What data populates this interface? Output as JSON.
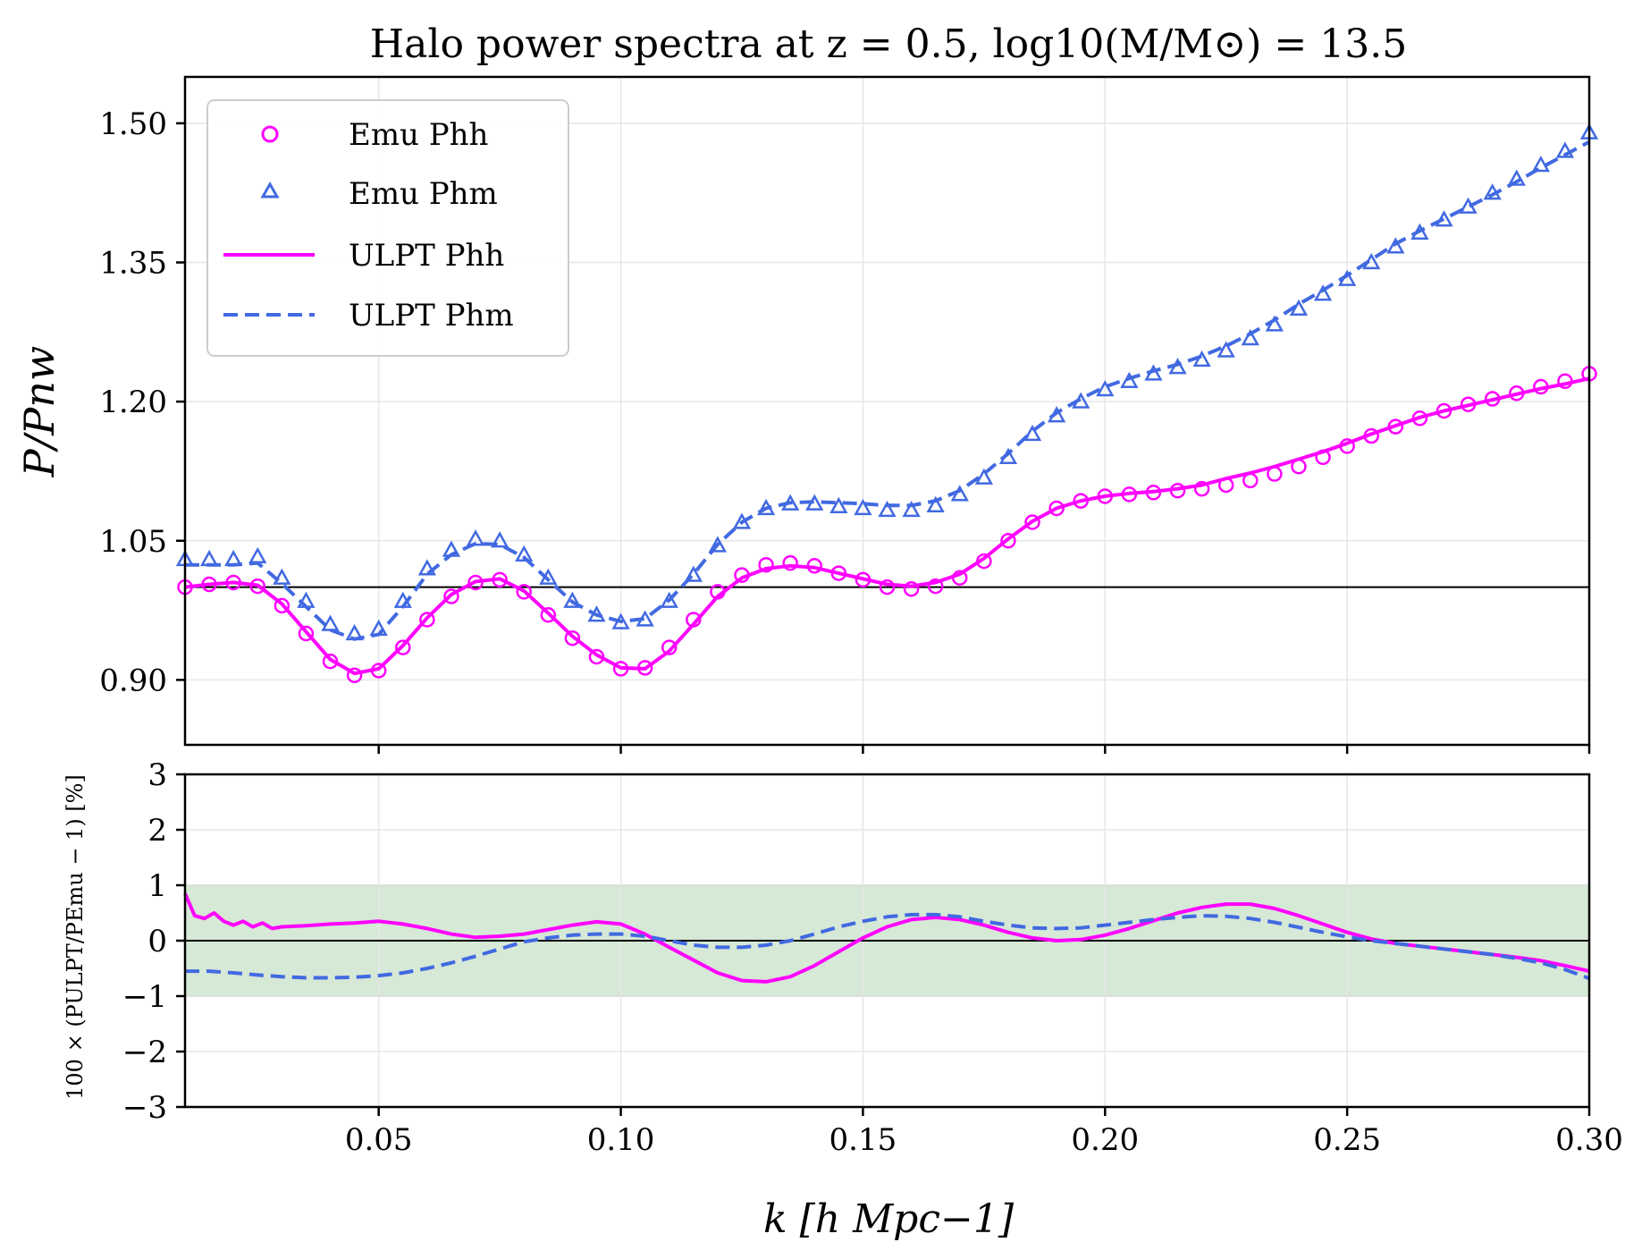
{
  "title": "Halo power spectra at z = 0.5, log10(M/M⊙) = 13.5",
  "legend": {
    "emu_hh": "Emu Phh",
    "emu_hm": "Emu Phm",
    "ulpt_hh": "ULPT Phh",
    "ulpt_hm": "ULPT Phm"
  },
  "colors": {
    "hh": "#ff00ff",
    "hm": "#4169e1",
    "band": "#d6e8d6",
    "band_edge": "#8fb88f"
  },
  "chart_data": [
    {
      "type": "scatter",
      "panel": "top",
      "ylabel": "P/Pnw",
      "xlim": [
        0.01,
        0.3
      ],
      "ylim": [
        0.83,
        1.55
      ],
      "yticks": [
        "0.90",
        "1.05",
        "1.20",
        "1.35",
        "1.50"
      ],
      "reference_line": 1.0,
      "grid": true,
      "legend_position": "upper-left",
      "series": [
        {
          "name": "Emu Phh",
          "marker": "circle",
          "x": [
            0.01,
            0.015,
            0.02,
            0.025,
            0.03,
            0.035,
            0.04,
            0.045,
            0.05,
            0.055,
            0.06,
            0.065,
            0.07,
            0.075,
            0.08,
            0.085,
            0.09,
            0.095,
            0.1,
            0.105,
            0.11,
            0.115,
            0.12,
            0.125,
            0.13,
            0.135,
            0.14,
            0.145,
            0.15,
            0.155,
            0.16,
            0.165,
            0.17,
            0.175,
            0.18,
            0.185,
            0.19,
            0.195,
            0.2,
            0.205,
            0.21,
            0.215,
            0.22,
            0.225,
            0.23,
            0.235,
            0.24,
            0.245,
            0.25,
            0.255,
            0.26,
            0.265,
            0.27,
            0.275,
            0.28,
            0.285,
            0.29,
            0.295,
            0.3
          ],
          "y": [
            1.0,
            1.003,
            1.005,
            1.001,
            0.98,
            0.95,
            0.92,
            0.905,
            0.91,
            0.935,
            0.965,
            0.99,
            1.005,
            1.008,
            0.995,
            0.97,
            0.945,
            0.925,
            0.912,
            0.913,
            0.935,
            0.965,
            0.995,
            1.013,
            1.024,
            1.026,
            1.023,
            1.015,
            1.008,
            1.0,
            0.998,
            1.001,
            1.01,
            1.028,
            1.05,
            1.07,
            1.085,
            1.093,
            1.098,
            1.1,
            1.102,
            1.104,
            1.106,
            1.11,
            1.115,
            1.122,
            1.13,
            1.14,
            1.152,
            1.163,
            1.173,
            1.182,
            1.19,
            1.197,
            1.203,
            1.209,
            1.216,
            1.222,
            1.23
          ]
        },
        {
          "name": "Emu Phm",
          "marker": "triangle",
          "x": [
            0.01,
            0.015,
            0.02,
            0.025,
            0.03,
            0.035,
            0.04,
            0.045,
            0.05,
            0.055,
            0.06,
            0.065,
            0.07,
            0.075,
            0.08,
            0.085,
            0.09,
            0.095,
            0.1,
            0.105,
            0.11,
            0.115,
            0.12,
            0.125,
            0.13,
            0.135,
            0.14,
            0.145,
            0.15,
            0.155,
            0.16,
            0.165,
            0.17,
            0.175,
            0.18,
            0.185,
            0.19,
            0.195,
            0.2,
            0.205,
            0.21,
            0.215,
            0.22,
            0.225,
            0.23,
            0.235,
            0.24,
            0.245,
            0.25,
            0.255,
            0.26,
            0.265,
            0.27,
            0.275,
            0.28,
            0.285,
            0.29,
            0.295,
            0.3
          ],
          "y": [
            1.03,
            1.03,
            1.03,
            1.033,
            1.01,
            0.985,
            0.96,
            0.95,
            0.955,
            0.985,
            1.02,
            1.04,
            1.052,
            1.05,
            1.035,
            1.01,
            0.985,
            0.97,
            0.962,
            0.965,
            0.985,
            1.013,
            1.045,
            1.07,
            1.085,
            1.09,
            1.09,
            1.087,
            1.085,
            1.083,
            1.083,
            1.088,
            1.1,
            1.118,
            1.14,
            1.165,
            1.185,
            1.2,
            1.213,
            1.222,
            1.23,
            1.237,
            1.245,
            1.255,
            1.268,
            1.283,
            1.3,
            1.316,
            1.332,
            1.35,
            1.367,
            1.382,
            1.396,
            1.41,
            1.425,
            1.44,
            1.455,
            1.47,
            1.49
          ]
        },
        {
          "name": "ULPT Phh",
          "style": "solid",
          "x": [
            0.01,
            0.015,
            0.02,
            0.025,
            0.03,
            0.035,
            0.04,
            0.045,
            0.05,
            0.055,
            0.06,
            0.065,
            0.07,
            0.075,
            0.08,
            0.085,
            0.09,
            0.095,
            0.1,
            0.105,
            0.11,
            0.115,
            0.12,
            0.125,
            0.13,
            0.135,
            0.14,
            0.145,
            0.15,
            0.155,
            0.16,
            0.165,
            0.17,
            0.175,
            0.18,
            0.185,
            0.19,
            0.195,
            0.2,
            0.205,
            0.21,
            0.215,
            0.22,
            0.225,
            0.23,
            0.235,
            0.24,
            0.245,
            0.25,
            0.255,
            0.26,
            0.265,
            0.27,
            0.275,
            0.28,
            0.285,
            0.29,
            0.295,
            0.3
          ],
          "y": [
            1.0,
            1.003,
            1.005,
            1.002,
            0.982,
            0.952,
            0.922,
            0.907,
            0.912,
            0.937,
            0.967,
            0.992,
            1.006,
            1.009,
            0.996,
            0.972,
            0.947,
            0.927,
            0.913,
            0.912,
            0.931,
            0.96,
            0.99,
            1.01,
            1.02,
            1.023,
            1.021,
            1.015,
            1.009,
            1.003,
            1.001,
            1.005,
            1.014,
            1.031,
            1.052,
            1.071,
            1.085,
            1.093,
            1.098,
            1.101,
            1.103,
            1.106,
            1.11,
            1.117,
            1.123,
            1.13,
            1.138,
            1.146,
            1.155,
            1.165,
            1.174,
            1.183,
            1.19,
            1.196,
            1.202,
            1.208,
            1.214,
            1.219,
            1.225
          ]
        },
        {
          "name": "ULPT Phm",
          "style": "dashed",
          "x": [
            0.01,
            0.015,
            0.02,
            0.025,
            0.03,
            0.035,
            0.04,
            0.045,
            0.05,
            0.055,
            0.06,
            0.065,
            0.07,
            0.075,
            0.08,
            0.085,
            0.09,
            0.095,
            0.1,
            0.105,
            0.11,
            0.115,
            0.12,
            0.125,
            0.13,
            0.135,
            0.14,
            0.145,
            0.15,
            0.155,
            0.16,
            0.165,
            0.17,
            0.175,
            0.18,
            0.185,
            0.19,
            0.195,
            0.2,
            0.205,
            0.21,
            0.215,
            0.22,
            0.225,
            0.23,
            0.235,
            0.24,
            0.245,
            0.25,
            0.255,
            0.26,
            0.265,
            0.27,
            0.275,
            0.28,
            0.285,
            0.29,
            0.295,
            0.3
          ],
          "y": [
            1.024,
            1.024,
            1.024,
            1.026,
            1.004,
            0.979,
            0.954,
            0.944,
            0.949,
            0.979,
            1.014,
            1.035,
            1.047,
            1.046,
            1.032,
            1.008,
            0.984,
            0.97,
            0.963,
            0.966,
            0.986,
            1.014,
            1.046,
            1.07,
            1.085,
            1.091,
            1.092,
            1.091,
            1.09,
            1.088,
            1.088,
            1.093,
            1.104,
            1.122,
            1.144,
            1.168,
            1.188,
            1.203,
            1.216,
            1.225,
            1.233,
            1.24,
            1.249,
            1.26,
            1.273,
            1.288,
            1.305,
            1.32,
            1.336,
            1.353,
            1.37,
            1.384,
            1.397,
            1.41,
            1.423,
            1.437,
            1.452,
            1.466,
            1.48
          ]
        }
      ]
    },
    {
      "type": "line",
      "panel": "bottom",
      "xlabel": "k [h Mpc−1]",
      "ylabel": "100 × (PULPT/PEmu − 1) [%]",
      "xlim": [
        0.01,
        0.3
      ],
      "ylim": [
        -3,
        3
      ],
      "xticks": [
        "0.05",
        "0.10",
        "0.15",
        "0.20",
        "0.25",
        "0.30"
      ],
      "yticks": [
        "−3",
        "−2",
        "−1",
        "0",
        "1",
        "2",
        "3"
      ],
      "band": [
        -1,
        1
      ],
      "reference_line": 0,
      "grid": true,
      "series": [
        {
          "name": "hh",
          "style": "solid",
          "x": [
            0.01,
            0.012,
            0.014,
            0.016,
            0.018,
            0.02,
            0.022,
            0.024,
            0.026,
            0.028,
            0.03,
            0.035,
            0.04,
            0.045,
            0.05,
            0.055,
            0.06,
            0.065,
            0.07,
            0.075,
            0.08,
            0.085,
            0.09,
            0.095,
            0.1,
            0.105,
            0.11,
            0.115,
            0.12,
            0.125,
            0.13,
            0.135,
            0.14,
            0.145,
            0.15,
            0.155,
            0.16,
            0.165,
            0.17,
            0.175,
            0.18,
            0.185,
            0.19,
            0.195,
            0.2,
            0.205,
            0.21,
            0.215,
            0.22,
            0.225,
            0.23,
            0.235,
            0.24,
            0.245,
            0.25,
            0.255,
            0.26,
            0.265,
            0.27,
            0.275,
            0.28,
            0.285,
            0.29,
            0.295,
            0.3
          ],
          "y": [
            0.85,
            0.45,
            0.4,
            0.5,
            0.35,
            0.28,
            0.35,
            0.25,
            0.32,
            0.22,
            0.25,
            0.27,
            0.3,
            0.32,
            0.35,
            0.3,
            0.22,
            0.12,
            0.06,
            0.08,
            0.12,
            0.2,
            0.28,
            0.34,
            0.3,
            0.12,
            -0.12,
            -0.35,
            -0.58,
            -0.72,
            -0.74,
            -0.65,
            -0.45,
            -0.2,
            0.05,
            0.25,
            0.38,
            0.42,
            0.38,
            0.28,
            0.15,
            0.05,
            0.0,
            0.02,
            0.1,
            0.22,
            0.36,
            0.5,
            0.6,
            0.66,
            0.66,
            0.58,
            0.45,
            0.3,
            0.15,
            0.03,
            -0.05,
            -0.1,
            -0.15,
            -0.2,
            -0.25,
            -0.3,
            -0.36,
            -0.45,
            -0.55
          ]
        },
        {
          "name": "hm",
          "style": "dashed",
          "x": [
            0.01,
            0.015,
            0.02,
            0.025,
            0.03,
            0.035,
            0.04,
            0.045,
            0.05,
            0.055,
            0.06,
            0.065,
            0.07,
            0.075,
            0.08,
            0.085,
            0.09,
            0.095,
            0.1,
            0.105,
            0.11,
            0.115,
            0.12,
            0.125,
            0.13,
            0.135,
            0.14,
            0.145,
            0.15,
            0.155,
            0.16,
            0.165,
            0.17,
            0.175,
            0.18,
            0.185,
            0.19,
            0.195,
            0.2,
            0.205,
            0.21,
            0.215,
            0.22,
            0.225,
            0.23,
            0.235,
            0.24,
            0.245,
            0.25,
            0.255,
            0.26,
            0.265,
            0.27,
            0.275,
            0.28,
            0.285,
            0.29,
            0.295,
            0.3
          ],
          "y": [
            -0.55,
            -0.55,
            -0.58,
            -0.62,
            -0.65,
            -0.67,
            -0.67,
            -0.66,
            -0.63,
            -0.58,
            -0.5,
            -0.4,
            -0.28,
            -0.15,
            -0.02,
            0.05,
            0.1,
            0.12,
            0.12,
            0.08,
            0.0,
            -0.08,
            -0.12,
            -0.12,
            -0.08,
            0.0,
            0.12,
            0.25,
            0.35,
            0.43,
            0.47,
            0.47,
            0.43,
            0.35,
            0.28,
            0.23,
            0.22,
            0.23,
            0.28,
            0.33,
            0.38,
            0.42,
            0.45,
            0.44,
            0.4,
            0.33,
            0.24,
            0.15,
            0.07,
            0.0,
            -0.05,
            -0.1,
            -0.15,
            -0.2,
            -0.25,
            -0.32,
            -0.4,
            -0.52,
            -0.68
          ]
        }
      ]
    }
  ]
}
